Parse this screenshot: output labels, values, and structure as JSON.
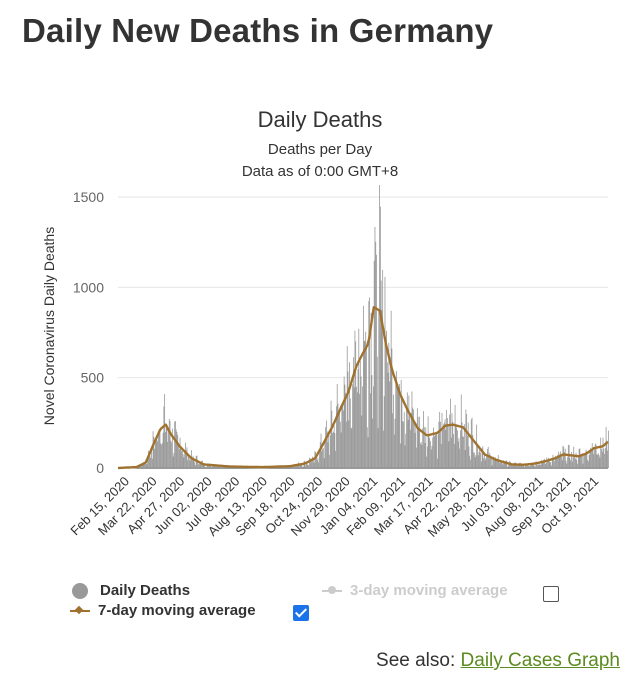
{
  "page": {
    "title": "Daily New Deaths in Germany"
  },
  "chart_data": {
    "type": "bar",
    "title": "Daily Deaths",
    "subtitle": "Deaths per Day",
    "subtitle2": "Data as of 0:00 GMT+8",
    "ylabel": "Novel Coronavirus Daily Deaths",
    "xlabel": "",
    "ylim": [
      0,
      1500
    ],
    "y_ticks": [
      0,
      500,
      1000,
      1500
    ],
    "x_range": [
      "2020-02-15",
      "2021-11-12"
    ],
    "tick_labels": [
      "Feb 15, 2020",
      "Mar 22, 2020",
      "Apr 27, 2020",
      "Jun 02, 2020",
      "Jul 08, 2020",
      "Aug 13, 2020",
      "Sep 18, 2020",
      "Oct 24, 2020",
      "Nov 29, 2020",
      "Jan 04, 2021",
      "Feb 09, 2021",
      "Mar 17, 2021",
      "Apr 22, 2021",
      "May 28, 2021",
      "Jul 03, 2021",
      "Aug 08, 2021",
      "Sep 13, 2021",
      "Oct 19, 2021"
    ],
    "trend_points": [
      [
        "2020-02-15",
        0
      ],
      [
        "2020-03-10",
        5
      ],
      [
        "2020-03-22",
        30
      ],
      [
        "2020-04-01",
        130
      ],
      [
        "2020-04-10",
        215
      ],
      [
        "2020-04-17",
        240
      ],
      [
        "2020-04-24",
        185
      ],
      [
        "2020-05-05",
        120
      ],
      [
        "2020-05-20",
        55
      ],
      [
        "2020-06-05",
        20
      ],
      [
        "2020-07-10",
        8
      ],
      [
        "2020-08-20",
        5
      ],
      [
        "2020-09-25",
        10
      ],
      [
        "2020-10-15",
        25
      ],
      [
        "2020-10-28",
        55
      ],
      [
        "2020-11-05",
        115
      ],
      [
        "2020-11-20",
        235
      ],
      [
        "2020-12-01",
        340
      ],
      [
        "2020-12-10",
        420
      ],
      [
        "2020-12-20",
        560
      ],
      [
        "2020-12-27",
        620
      ],
      [
        "2021-01-05",
        690
      ],
      [
        "2021-01-12",
        890
      ],
      [
        "2021-01-20",
        870
      ],
      [
        "2021-01-28",
        680
      ],
      [
        "2021-02-05",
        540
      ],
      [
        "2021-02-15",
        410
      ],
      [
        "2021-02-25",
        320
      ],
      [
        "2021-03-10",
        220
      ],
      [
        "2021-03-22",
        180
      ],
      [
        "2021-04-05",
        195
      ],
      [
        "2021-04-15",
        235
      ],
      [
        "2021-04-25",
        240
      ],
      [
        "2021-05-08",
        225
      ],
      [
        "2021-05-20",
        160
      ],
      [
        "2021-06-05",
        75
      ],
      [
        "2021-06-20",
        45
      ],
      [
        "2021-07-10",
        20
      ],
      [
        "2021-07-25",
        18
      ],
      [
        "2021-08-10",
        25
      ],
      [
        "2021-08-25",
        40
      ],
      [
        "2021-09-05",
        55
      ],
      [
        "2021-09-15",
        75
      ],
      [
        "2021-09-25",
        70
      ],
      [
        "2021-10-05",
        65
      ],
      [
        "2021-10-15",
        80
      ],
      [
        "2021-10-25",
        110
      ],
      [
        "2021-11-05",
        120
      ],
      [
        "2021-11-12",
        145
      ]
    ],
    "series": [
      {
        "name": "Daily Deaths",
        "color": "#999999"
      },
      {
        "name": "7-day moving average",
        "color": "#a0722f"
      },
      {
        "name": "3-day moving average",
        "color": "#cccccc"
      }
    ],
    "legend_position": "bottom",
    "grid": true
  },
  "legend": {
    "daily": "Daily Deaths",
    "ma7": "7-day moving average",
    "ma3": "3-day moving average",
    "ma7_checked": true,
    "ma3_checked": false
  },
  "see_also": {
    "label": "See also:",
    "link": "Daily Cases Graph"
  }
}
